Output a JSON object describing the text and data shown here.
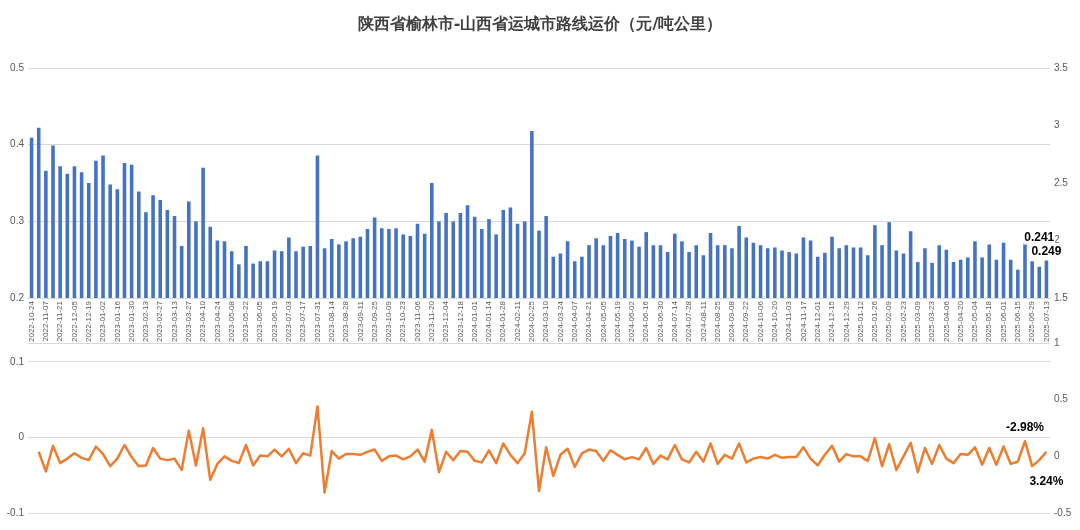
{
  "chart_data": [
    {
      "type": "bar",
      "title": "陕西省榆林市-山西省运城市路线运价（元/吨公里）",
      "categories": [
        "2022-10-24",
        null,
        "2022-11-07",
        null,
        "2022-11-21",
        null,
        "2022-12-05",
        null,
        "2022-12-19",
        null,
        "2023-01-02",
        null,
        "2023-01-16",
        null,
        "2023-01-30",
        null,
        "2023-02-13",
        null,
        "2023-02-27",
        null,
        "2023-03-13",
        null,
        "2023-03-27",
        null,
        "2023-04-10",
        null,
        "2023-04-24",
        null,
        "2023-05-08",
        null,
        "2023-05-22",
        null,
        "2023-06-05",
        null,
        "2023-06-19",
        null,
        "2023-07-03",
        null,
        "2023-07-17",
        null,
        "2023-07-31",
        null,
        "2023-08-14",
        null,
        "2023-08-28",
        null,
        "2023-09-11",
        null,
        "2023-09-25",
        null,
        "2023-10-09",
        null,
        "2023-10-23",
        null,
        "2023-11-06",
        null,
        "2023-11-20",
        null,
        "2023-12-04",
        null,
        "2023-12-18",
        null,
        "2024-01-01",
        null,
        "2024-01-14",
        null,
        "2024-01-28",
        null,
        "2024-02-11",
        null,
        "2024-02-25",
        null,
        "2024-03-10",
        null,
        "2024-03-24",
        null,
        "2024-04-07",
        null,
        "2024-04-21",
        null,
        "2024-05-05",
        null,
        "2024-05-19",
        null,
        "2024-06-02",
        null,
        "2024-06-16",
        null,
        "2024-06-30",
        null,
        "2024-07-14",
        null,
        "2024-07-28",
        null,
        "2024-08-11",
        null,
        "2024-08-25",
        null,
        "2024-09-08",
        null,
        "2024-09-22",
        null,
        "2024-10-06",
        null,
        "2024-10-20",
        null,
        "2024-11-03",
        null,
        "2024-11-17",
        null,
        "2024-12-01",
        null,
        "2024-12-15",
        null,
        "2024-12-29",
        null,
        "2025-01-12",
        null,
        "2025-01-26",
        null,
        "2025-02-09",
        null,
        "2025-02-23",
        null,
        "2025-03-09",
        null,
        "2025-03-23",
        null,
        "2025-04-06",
        null,
        "2025-04-20",
        null,
        "2025-05-04",
        null,
        "2025-05-18",
        null,
        "2025-06-01",
        null,
        "2025-06-15",
        null,
        "2025-06-29",
        null,
        "2025-07-13"
      ],
      "series": [
        {
          "color": "#4472c4",
          "values": [
            0.409,
            0.422,
            0.366,
            0.399,
            0.372,
            0.362,
            0.372,
            0.364,
            0.35,
            0.379,
            0.386,
            0.348,
            0.342,
            0.376,
            0.374,
            0.339,
            0.312,
            0.334,
            0.328,
            0.315,
            0.307,
            0.268,
            0.326,
            0.3,
            0.37,
            0.293,
            0.275,
            0.274,
            0.261,
            0.244,
            0.268,
            0.245,
            0.248,
            0.248,
            0.262,
            0.261,
            0.279,
            0.261,
            0.267,
            0.268,
            0.386,
            0.265,
            0.277,
            0.27,
            0.274,
            0.278,
            0.28,
            0.29,
            0.305,
            0.291,
            0.29,
            0.291,
            0.283,
            0.281,
            0.297,
            0.284,
            0.35,
            0.3,
            0.311,
            0.3,
            0.311,
            0.321,
            0.306,
            0.29,
            0.303,
            0.283,
            0.315,
            0.318,
            0.297,
            0.3,
            0.418,
            0.288,
            0.307,
            0.254,
            0.258,
            0.274,
            0.248,
            0.254,
            0.269,
            0.278,
            0.269,
            0.281,
            0.285,
            0.277,
            0.275,
            0.267,
            0.286,
            0.269,
            0.269,
            0.26,
            0.284,
            0.274,
            0.26,
            0.269,
            0.256,
            0.285,
            0.269,
            0.269,
            0.265,
            0.294,
            0.279,
            0.272,
            0.269,
            0.265,
            0.266,
            0.262,
            0.26,
            0.258,
            0.279,
            0.275,
            0.254,
            0.259,
            0.28,
            0.265,
            0.269,
            0.266,
            0.266,
            0.256,
            0.295,
            0.269,
            0.299,
            0.262,
            0.258,
            0.287,
            0.247,
            0.265,
            0.246,
            0.269,
            0.263,
            0.247,
            0.25,
            0.253,
            0.274,
            0.253,
            0.27,
            0.25,
            0.272,
            0.25,
            0.237,
            0.273,
            0.248,
            0.241,
            0.249
          ],
          "value_labels": [
            null,
            null,
            null,
            null,
            null,
            null,
            null,
            null,
            null,
            null,
            null,
            null,
            null,
            null,
            null,
            null,
            null,
            null,
            null,
            null,
            null,
            null,
            null,
            null,
            null,
            null,
            null,
            null,
            null,
            null,
            null,
            null,
            null,
            null,
            null,
            null,
            null,
            null,
            null,
            null,
            null,
            null,
            null,
            null,
            null,
            null,
            null,
            null,
            null,
            null,
            null,
            null,
            null,
            null,
            null,
            null,
            null,
            null,
            null,
            null,
            null,
            null,
            null,
            null,
            null,
            null,
            null,
            null,
            null,
            null,
            null,
            null,
            null,
            null,
            null,
            null,
            null,
            null,
            null,
            null,
            null,
            null,
            null,
            null,
            null,
            null,
            null,
            null,
            null,
            null,
            null,
            null,
            null,
            null,
            null,
            null,
            null,
            null,
            null,
            null,
            null,
            null,
            null,
            null,
            null,
            null,
            null,
            null,
            null,
            null,
            null,
            null,
            null,
            null,
            null,
            null,
            null,
            null,
            null,
            null,
            null,
            null,
            null,
            null,
            null,
            null,
            null,
            null,
            null,
            null,
            null,
            null,
            null,
            null,
            null,
            null,
            null,
            null,
            null,
            null,
            null,
            "0.241",
            "0.249"
          ]
        }
      ],
      "ylim": [
        0.2,
        0.5
      ],
      "yticks": [
        0.2,
        0.3,
        0.4,
        0.5
      ],
      "y2lim": [
        1.5,
        3.5
      ],
      "y2ticks": [
        1.5,
        2,
        2.5,
        3,
        3.5
      ],
      "grid": "y",
      "legend": false
    },
    {
      "type": "line",
      "categories": [
        "2022-10-24",
        null,
        "2022-11-07",
        null,
        "2022-11-21",
        null,
        "2022-12-05",
        null,
        "2022-12-19",
        null,
        "2023-01-02",
        null,
        "2023-01-16",
        null,
        "2023-01-30",
        null,
        "2023-02-13",
        null,
        "2023-02-27",
        null,
        "2023-03-13",
        null,
        "2023-03-27",
        null,
        "2023-04-10",
        null,
        "2023-04-24",
        null,
        "2023-05-08",
        null,
        "2023-05-22",
        null,
        "2023-06-05",
        null,
        "2023-06-19",
        null,
        "2023-07-03",
        null,
        "2023-07-17",
        null,
        "2023-07-31",
        null,
        "2023-08-14",
        null,
        "2023-08-28",
        null,
        "2023-09-11",
        null,
        "2023-09-25",
        null,
        "2023-10-09",
        null,
        "2023-10-23",
        null,
        "2023-11-06",
        null,
        "2023-11-20",
        null,
        "2023-12-04",
        null,
        "2023-12-18",
        null,
        "2024-01-01",
        null,
        "2024-01-14",
        null,
        "2024-01-28",
        null,
        "2024-02-11",
        null,
        "2024-02-25",
        null,
        "2024-03-10",
        null,
        "2024-03-24",
        null,
        "2024-04-07",
        null,
        "2024-04-21",
        null,
        "2024-05-05",
        null,
        "2024-05-19",
        null,
        "2024-06-02",
        null,
        "2024-06-16",
        null,
        "2024-06-30",
        null,
        "2024-07-14",
        null,
        "2024-07-28",
        null,
        "2024-08-11",
        null,
        "2024-08-25",
        null,
        "2024-09-08",
        null,
        "2024-09-22",
        null,
        "2024-10-06",
        null,
        "2024-10-20",
        null,
        "2024-11-03",
        null,
        "2024-11-17",
        null,
        "2024-12-01",
        null,
        "2024-12-15",
        null,
        "2024-12-29",
        null,
        "2025-01-12",
        null,
        "2025-01-26",
        null,
        "2025-02-09",
        null,
        "2025-02-23",
        null,
        "2025-03-09",
        null,
        "2025-03-23",
        null,
        "2025-04-06",
        null,
        "2025-04-20",
        null,
        "2025-05-04",
        null,
        "2025-05-18",
        null,
        "2025-06-01",
        null,
        "2025-06-15",
        null,
        "2025-06-29",
        null,
        "2025-07-13"
      ],
      "series": [
        {
          "color": "#ed7d31",
          "values": [
            null,
            -0.019,
            -0.045,
            -0.011,
            -0.034,
            -0.028,
            -0.021,
            -0.027,
            -0.03,
            -0.012,
            -0.022,
            -0.038,
            -0.028,
            -0.01,
            -0.026,
            -0.038,
            -0.037,
            -0.014,
            -0.028,
            -0.03,
            -0.028,
            -0.043,
            0.009,
            -0.037,
            0.012,
            -0.056,
            -0.035,
            -0.025,
            -0.031,
            -0.034,
            -0.01,
            -0.037,
            -0.024,
            -0.025,
            -0.016,
            -0.025,
            -0.015,
            -0.034,
            -0.021,
            -0.024,
            0.041,
            -0.073,
            -0.018,
            -0.028,
            -0.022,
            -0.022,
            -0.023,
            -0.019,
            -0.016,
            -0.031,
            -0.025,
            -0.024,
            -0.029,
            -0.025,
            -0.016,
            -0.032,
            0.01,
            -0.046,
            -0.019,
            -0.03,
            -0.018,
            -0.019,
            -0.031,
            -0.033,
            -0.017,
            -0.034,
            -0.008,
            -0.023,
            -0.034,
            -0.021,
            0.034,
            -0.071,
            -0.013,
            -0.051,
            -0.023,
            -0.015,
            -0.039,
            -0.021,
            -0.016,
            -0.018,
            -0.031,
            -0.017,
            -0.023,
            -0.029,
            -0.026,
            -0.029,
            -0.014,
            -0.035,
            -0.024,
            -0.029,
            -0.01,
            -0.029,
            -0.033,
            -0.019,
            -0.032,
            -0.008,
            -0.035,
            -0.023,
            -0.028,
            -0.008,
            -0.033,
            -0.028,
            -0.026,
            -0.028,
            -0.023,
            -0.027,
            -0.026,
            -0.026,
            -0.013,
            -0.028,
            -0.037,
            -0.023,
            -0.011,
            -0.032,
            -0.022,
            -0.025,
            -0.025,
            -0.031,
            -0.001,
            -0.038,
            -0.009,
            -0.043,
            -0.025,
            -0.007,
            -0.046,
            -0.014,
            -0.035,
            -0.01,
            -0.028,
            -0.034,
            -0.022,
            -0.023,
            -0.013,
            -0.036,
            -0.014,
            -0.036,
            -0.012,
            -0.035,
            -0.032,
            -0.005,
            -0.038,
            -0.03,
            -0.019
          ]
        }
      ],
      "ylim": [
        -0.1,
        0.125
      ],
      "yticks": [
        -0.1,
        0,
        0.1
      ],
      "y2lim": [
        -0.5,
        1
      ],
      "y2ticks": [
        -0.5,
        0,
        0.5,
        1
      ],
      "tick_labels": "y",
      "grid": "y",
      "legend": false,
      "marker": "none",
      "line_style": "solid",
      "annotations": [
        "-2.98%",
        "3.24%"
      ]
    }
  ]
}
